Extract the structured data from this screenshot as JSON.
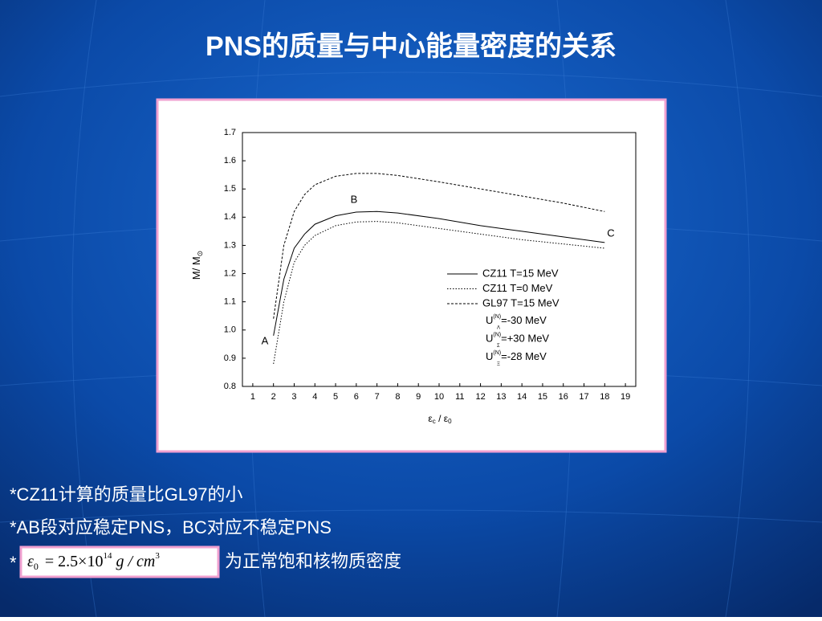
{
  "slide": {
    "title": "PNS的质量与中心能量密度的关系",
    "bullets": [
      "*CZ11计算的质量比GL97的小",
      "*AB段对应稳定PNS，BC对应不稳定PNS"
    ],
    "formula_bullet": {
      "star": "*",
      "formula": {
        "lhs": "ε",
        "lhs_sub": "0",
        "eq": "= 2.5×10",
        "exp": "14",
        "unit": " g / cm",
        "unit_exp": "3"
      },
      "text": "为正常饱和核物质密度"
    }
  },
  "chart_data": {
    "type": "line",
    "xlabel": {
      "main": "ε",
      "sub": "c",
      "mid": " / ε",
      "sub2": "0"
    },
    "ylabel": {
      "main": "M/ M",
      "sub": "⊙"
    },
    "x": [
      2,
      2.5,
      3,
      3.5,
      4,
      5,
      6,
      7,
      8,
      10,
      12,
      14,
      16,
      18
    ],
    "series": [
      {
        "name": "CZ11 T=15 MeV",
        "color": "#000000",
        "style": "solid",
        "values": [
          0.98,
          1.18,
          1.29,
          1.34,
          1.375,
          1.405,
          1.418,
          1.42,
          1.415,
          1.395,
          1.37,
          1.35,
          1.33,
          1.31
        ]
      },
      {
        "name": "CZ11 T=0 MeV",
        "color": "#000000",
        "style": "dotted",
        "values": [
          0.88,
          1.1,
          1.24,
          1.3,
          1.335,
          1.37,
          1.383,
          1.385,
          1.38,
          1.36,
          1.34,
          1.32,
          1.305,
          1.29
        ]
      },
      {
        "name": "GL97 T=15 MeV",
        "color": "#000000",
        "style": "dashed",
        "values": [
          1.04,
          1.3,
          1.42,
          1.48,
          1.515,
          1.545,
          1.555,
          1.555,
          1.548,
          1.525,
          1.5,
          1.475,
          1.45,
          1.42
        ]
      }
    ],
    "legend_notes": [
      {
        "symbol": "U",
        "sup": "(N)",
        "sub": "Λ",
        "text": "=-30 MeV"
      },
      {
        "symbol": "U",
        "sup": "(N)",
        "sub": "Σ",
        "text": "=+30 MeV"
      },
      {
        "symbol": "U",
        "sup": "(N)",
        "sub": "Ξ",
        "text": "=-28 MeV"
      }
    ],
    "annotations": [
      "A",
      "B",
      "C"
    ],
    "xlim": [
      0.5,
      19.5
    ],
    "xticks": [
      1,
      2,
      3,
      4,
      5,
      6,
      7,
      8,
      9,
      10,
      11,
      12,
      13,
      14,
      15,
      16,
      17,
      18,
      19
    ],
    "ylim": [
      0.8,
      1.7
    ],
    "yticks": [
      0.8,
      0.9,
      {
        "value": 1.0,
        "label": "1.0"
      },
      1.1,
      1.2,
      1.3,
      1.4,
      1.5,
      1.6,
      1.7
    ],
    "grid": false
  }
}
